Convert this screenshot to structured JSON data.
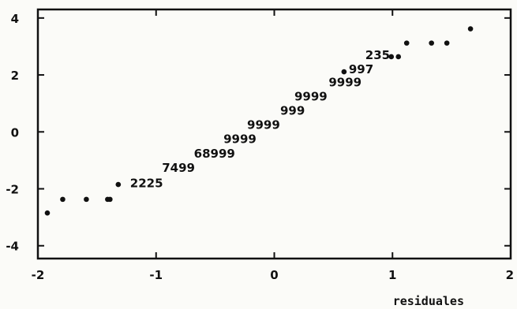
{
  "chart_data": {
    "type": "scatter",
    "xlabel": "residuales",
    "ylabel": "",
    "xlim": [
      -2,
      2
    ],
    "ylim": [
      -4.45,
      4.3
    ],
    "x_ticks": [
      "-2",
      "-1",
      "0",
      "1",
      "2"
    ],
    "y_ticks": [
      "4",
      "2",
      "0",
      "-2",
      "-4"
    ],
    "grid": false,
    "points": [
      {
        "x": -1.92,
        "y": -2.85
      },
      {
        "x": -1.79,
        "y": -2.37
      },
      {
        "x": -1.59,
        "y": -2.37
      },
      {
        "x": -1.41,
        "y": -2.37
      },
      {
        "x": -1.39,
        "y": -2.37
      },
      {
        "x": -1.32,
        "y": -1.85
      },
      {
        "x": 0.59,
        "y": 2.11
      },
      {
        "x": 0.99,
        "y": 2.64
      },
      {
        "x": 1.05,
        "y": 2.64
      },
      {
        "x": 1.12,
        "y": 3.12
      },
      {
        "x": 1.33,
        "y": 3.12
      },
      {
        "x": 1.46,
        "y": 3.12
      },
      {
        "x": 1.66,
        "y": 3.62
      }
    ],
    "point_labels": [
      {
        "text": "2225",
        "x": -1.22,
        "y": -1.94
      },
      {
        "text": "7499",
        "x": -0.95,
        "y": -1.4
      },
      {
        "text": "68999",
        "x": -0.68,
        "y": -0.9
      },
      {
        "text": "9999",
        "x": -0.43,
        "y": -0.4
      },
      {
        "text": "9999",
        "x": -0.23,
        "y": 0.1
      },
      {
        "text": "999",
        "x": 0.05,
        "y": 0.6
      },
      {
        "text": "9999",
        "x": 0.17,
        "y": 1.1
      },
      {
        "text": "9999",
        "x": 0.46,
        "y": 1.6
      },
      {
        "text": "997",
        "x": 0.63,
        "y": 2.06
      },
      {
        "text": "235",
        "x": 0.77,
        "y": 2.56
      }
    ]
  }
}
